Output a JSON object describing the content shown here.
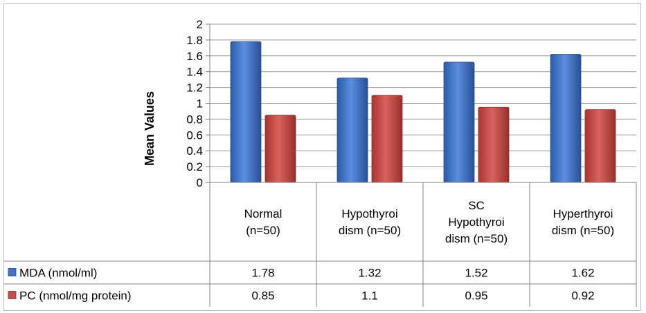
{
  "chart_data": {
    "type": "bar",
    "ylabel": "Mean Values",
    "xlabel": "",
    "ylim": [
      0,
      2
    ],
    "y_ticks": [
      "0",
      "0.2",
      "0.4",
      "0.6",
      "0.8",
      "1",
      "1.2",
      "1.4",
      "1.6",
      "1.8",
      "2"
    ],
    "grid": true,
    "legend": "data-table",
    "categories": [
      [
        "Normal",
        "(n=50)"
      ],
      [
        "Hypothyroi",
        "dism (n=50)"
      ],
      [
        "SC",
        "Hypothyroi",
        "dism (n=50)"
      ],
      [
        "Hyperthyroi",
        "dism (n=50)"
      ]
    ],
    "series": [
      {
        "name": "MDA (nmol/ml)",
        "color": "#4472c4",
        "values": [
          1.78,
          1.32,
          1.52,
          1.62
        ],
        "labels": [
          "1.78",
          "1.32",
          "1.52",
          "1.62"
        ]
      },
      {
        "name": "PC (nmol/mg protein)",
        "color": "#c0504d",
        "values": [
          0.85,
          1.1,
          0.95,
          0.92
        ],
        "labels": [
          "0.85",
          "1.1",
          "0.95",
          "0.92"
        ]
      }
    ]
  }
}
